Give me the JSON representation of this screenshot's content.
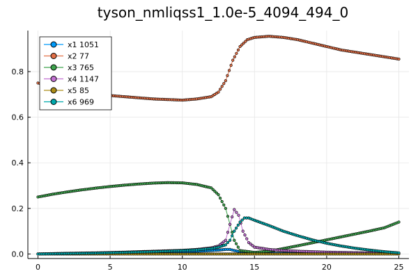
{
  "chart_data": {
    "type": "line",
    "title": "tyson_nmliqss1_1.0e-5_4094_494_0",
    "xlabel": "",
    "ylabel": "",
    "xlim": [
      -0.7,
      25.7
    ],
    "ylim": [
      -0.02,
      0.98
    ],
    "xticks": [
      0,
      5,
      10,
      15,
      20,
      25
    ],
    "yticks": [
      0.0,
      0.2,
      0.4,
      0.6,
      0.8
    ],
    "ytick_labels": [
      "0.0",
      "0.2",
      "0.4",
      "0.6",
      "0.8"
    ],
    "grid": true,
    "legend_position": "top-left",
    "series": [
      {
        "name": "x1 1051",
        "color": "#009AFA",
        "x": [
          0,
          1,
          2,
          3,
          4,
          5,
          6,
          7,
          8,
          9,
          10,
          11,
          12,
          12.5,
          13,
          13.3,
          13.6,
          14,
          15,
          16,
          17,
          18,
          19,
          20,
          21,
          22,
          23,
          24,
          25
        ],
        "y": [
          0.0,
          0.0015,
          0.002,
          0.003,
          0.004,
          0.005,
          0.006,
          0.007,
          0.008,
          0.009,
          0.01,
          0.012,
          0.015,
          0.017,
          0.02,
          0.02,
          0.015,
          0.01,
          0.006,
          0.004,
          0.003,
          0.003,
          0.003,
          0.003,
          0.003,
          0.003,
          0.003,
          0.003,
          0.003
        ]
      },
      {
        "name": "x2 77",
        "color": "#E26F46",
        "x": [
          0,
          2,
          4,
          6,
          8,
          10,
          11,
          12,
          12.5,
          13,
          13.5,
          14,
          14.5,
          15,
          16,
          17,
          18,
          19,
          20,
          21,
          22,
          23,
          24,
          25
        ],
        "y": [
          0.75,
          0.72,
          0.7,
          0.69,
          0.68,
          0.675,
          0.68,
          0.69,
          0.71,
          0.76,
          0.85,
          0.91,
          0.94,
          0.95,
          0.955,
          0.95,
          0.94,
          0.925,
          0.91,
          0.895,
          0.885,
          0.875,
          0.865,
          0.855
        ]
      },
      {
        "name": "x3 765",
        "color": "#3DA44D",
        "x": [
          0,
          1,
          2,
          3,
          4,
          5,
          6,
          7,
          8,
          9,
          10,
          11,
          12,
          12.5,
          13,
          13.3,
          13.6,
          14,
          15,
          16,
          17,
          18,
          19,
          20,
          21,
          22,
          23,
          24,
          25
        ],
        "y": [
          0.25,
          0.262,
          0.272,
          0.281,
          0.289,
          0.296,
          0.302,
          0.307,
          0.311,
          0.313,
          0.312,
          0.305,
          0.29,
          0.26,
          0.2,
          0.13,
          0.06,
          0.015,
          0.007,
          0.012,
          0.024,
          0.036,
          0.049,
          0.062,
          0.075,
          0.088,
          0.101,
          0.115,
          0.14
        ]
      },
      {
        "name": "x4 1147",
        "color": "#C271D2",
        "x": [
          0,
          2,
          4,
          6,
          8,
          10,
          11,
          12,
          12.5,
          13,
          13.3,
          13.6,
          13.9,
          14.2,
          14.6,
          15,
          16,
          17,
          18,
          19,
          20,
          21,
          22,
          23,
          24,
          25
        ],
        "y": [
          0.0,
          0.003,
          0.005,
          0.008,
          0.012,
          0.016,
          0.02,
          0.027,
          0.035,
          0.06,
          0.13,
          0.195,
          0.17,
          0.1,
          0.05,
          0.03,
          0.02,
          0.015,
          0.012,
          0.01,
          0.008,
          0.007,
          0.006,
          0.005,
          0.004,
          0.003
        ]
      },
      {
        "name": "x5 85",
        "color": "#AC8D18",
        "x": [
          0,
          2,
          4,
          6,
          8,
          10,
          12,
          14,
          16,
          18,
          20,
          22,
          24,
          25
        ],
        "y": [
          0.0,
          0.0,
          0.0,
          0.0,
          0.0,
          0.0,
          0.0,
          0.0,
          0.0,
          0.0,
          0.0,
          0.0,
          0.0,
          0.0
        ]
      },
      {
        "name": "x6 969",
        "color": "#00A9AD",
        "x": [
          0,
          2,
          4,
          6,
          8,
          10,
          11,
          12,
          12.5,
          13,
          13.3,
          13.6,
          14,
          14.3,
          14.6,
          15,
          16,
          17,
          18,
          19,
          20,
          21,
          22,
          23,
          24,
          25
        ],
        "y": [
          0.0,
          0.002,
          0.004,
          0.007,
          0.01,
          0.015,
          0.018,
          0.024,
          0.03,
          0.04,
          0.06,
          0.1,
          0.14,
          0.158,
          0.158,
          0.148,
          0.125,
          0.1,
          0.08,
          0.062,
          0.047,
          0.035,
          0.025,
          0.017,
          0.01,
          0.005
        ]
      }
    ]
  }
}
